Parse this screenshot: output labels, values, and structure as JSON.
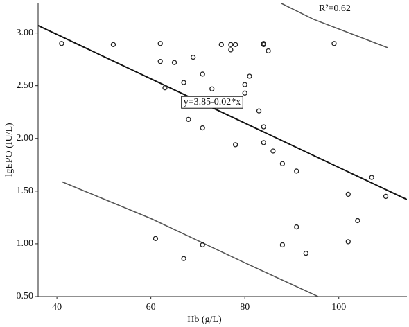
{
  "chart_data": {
    "type": "scatter",
    "x_label": "Hb (g/L)",
    "y_label": "lgEPO (IU/L)",
    "xlim": [
      36,
      114.5
    ],
    "ylim": [
      0.5,
      3.28
    ],
    "xticks": [
      40,
      60,
      80,
      100
    ],
    "yticks": [
      {
        "value": 0.5,
        "label": "0.50"
      },
      {
        "value": 1,
        "label": "1.00"
      },
      {
        "value": 1.5,
        "label": "1.50"
      },
      {
        "value": 2,
        "label": "2.00"
      },
      {
        "value": 2.5,
        "label": "2.50"
      },
      {
        "value": 3,
        "label": "3.00"
      }
    ],
    "points": {
      "color": "#222",
      "x": [
        41,
        52,
        62,
        62,
        65,
        69,
        63,
        67,
        71,
        73,
        75,
        77,
        78,
        77,
        84,
        84,
        85,
        81,
        80,
        80,
        68,
        71,
        78,
        83,
        84,
        84,
        86,
        88,
        91,
        99,
        107,
        102,
        110,
        104,
        91,
        102,
        88,
        93,
        61,
        71,
        67
      ],
      "y": [
        2.9,
        2.89,
        2.9,
        2.73,
        2.72,
        2.77,
        2.48,
        2.53,
        2.61,
        2.47,
        2.89,
        2.89,
        2.89,
        2.84,
        2.9,
        2.89,
        2.83,
        2.59,
        2.51,
        2.43,
        2.18,
        2.1,
        1.94,
        2.26,
        2.11,
        1.96,
        1.88,
        1.76,
        1.69,
        2.9,
        1.63,
        1.47,
        1.45,
        1.22,
        1.16,
        1.02,
        0.99,
        0.91,
        1.05,
        0.99,
        0.86
      ]
    },
    "lines": [
      {
        "color": "#111",
        "width": 2,
        "x": [
          36,
          114.5
        ],
        "y": [
          3.07,
          1.42
        ]
      },
      {
        "color": "#555",
        "width": 1.6,
        "x": [
          87.8,
          94.6,
          110.4
        ],
        "y": [
          3.28,
          3.13,
          2.86
        ]
      },
      {
        "color": "#555",
        "width": 1.6,
        "x": [
          41,
          60,
          80,
          95.6
        ],
        "y": [
          1.59,
          1.24,
          0.82,
          0.5
        ]
      }
    ],
    "equation": "y=3.85-0.02*x",
    "r_squared": "R²=0.62"
  }
}
